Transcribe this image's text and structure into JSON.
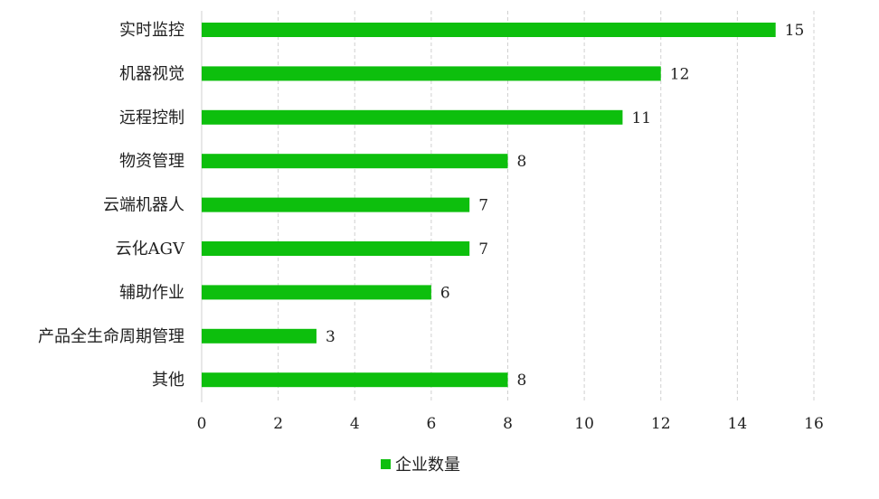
{
  "chart_data": {
    "type": "bar",
    "orientation": "horizontal",
    "categories": [
      "实时监控",
      "机器视觉",
      "远程控制",
      "物资管理",
      "云端机器人",
      "云化AGV",
      "辅助作业",
      "产品全生命周期管理",
      "其他"
    ],
    "series": [
      {
        "name": "企业数量",
        "values": [
          15,
          12,
          11,
          8,
          7,
          7,
          6,
          3,
          8
        ]
      }
    ],
    "xlim": [
      0,
      16
    ],
    "xticks": [
      0,
      2,
      4,
      6,
      8,
      10,
      12,
      14,
      16
    ],
    "grid": "vertical-dashed",
    "legend": "bottom",
    "data_labels": true,
    "colors": {
      "bar": "#0dbf0d",
      "grid": "#d0d0d0"
    }
  }
}
